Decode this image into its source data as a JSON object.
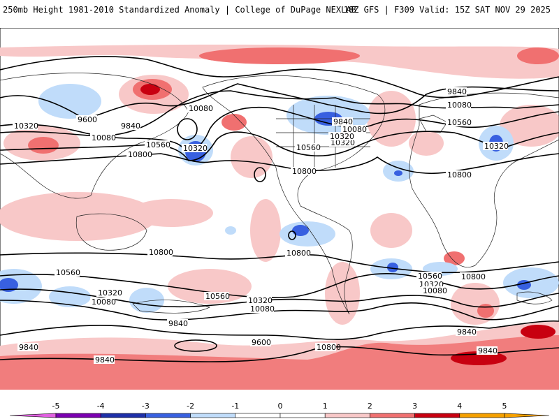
{
  "header": {
    "left": "250mb Height 1981-2010 Standardized Anomaly | College of DuPage NEXLAB",
    "right": "18Z GFS | F309 Valid: 15Z SAT NOV 29 2025"
  },
  "colorbar": {
    "ticks": [
      "-5",
      "-4",
      "-3",
      "-2",
      "-1",
      "0",
      "1",
      "2",
      "3",
      "4",
      "5"
    ],
    "colors": [
      "#e060e0",
      "#7a00b0",
      "#1e2fa8",
      "#3860e0",
      "#c0dcfa",
      "#ffffff",
      "#ffffff",
      "#f8c8c8",
      "#f07070",
      "#c80010",
      "#f5a000"
    ]
  },
  "contour_labels": [
    "9600",
    "9840",
    "10080",
    "10320",
    "10320",
    "10560",
    "10800",
    "10080",
    "10320",
    "10560",
    "10800",
    "9840",
    "10080",
    "10320",
    "9840",
    "10080",
    "10560",
    "10320",
    "10800",
    "10800",
    "10800",
    "10800",
    "10560",
    "10320",
    "10080",
    "9840",
    "9840",
    "10560",
    "10320",
    "10080",
    "9600",
    "9840",
    "10560",
    "10320",
    "10080",
    "9840",
    "9840",
    "10800"
  ]
}
